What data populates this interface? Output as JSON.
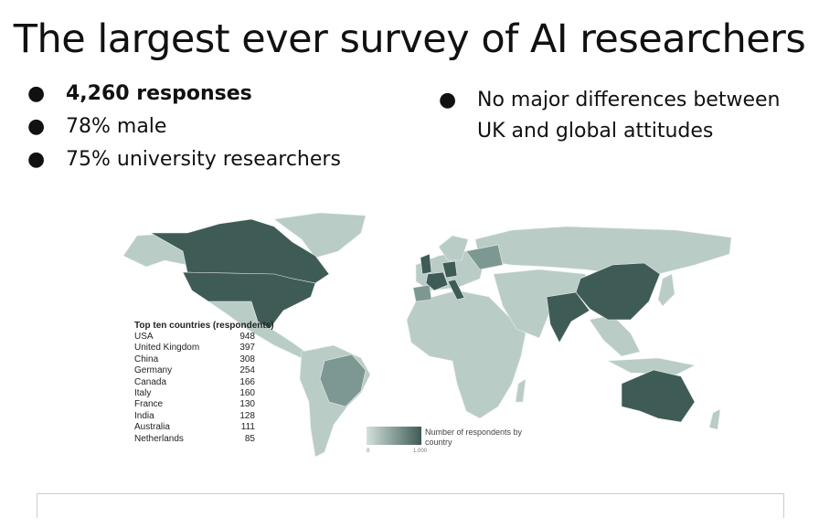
{
  "title": "The largest ever survey of AI researchers",
  "bullets_left": [
    {
      "text": "4,260 responses",
      "bold": true
    },
    {
      "text": "78% male",
      "bold": false
    },
    {
      "text": "75% university researchers",
      "bold": false
    }
  ],
  "bullets_right": [
    {
      "text": "No major differences between UK and global attitudes"
    }
  ],
  "bullet_glyph": "●",
  "map": {
    "colors": {
      "high": "#3f5b56",
      "mid": "#7d9892",
      "low": "#b9ccc6",
      "lowest": "#d3e0db"
    },
    "table": {
      "header": "Top ten countries (respondents)",
      "rows": [
        {
          "country": "USA",
          "value": "948"
        },
        {
          "country": "United Kingdom",
          "value": "397"
        },
        {
          "country": "China",
          "value": "308"
        },
        {
          "country": "Germany",
          "value": "254"
        },
        {
          "country": "Canada",
          "value": "166"
        },
        {
          "country": "Italy",
          "value": "160"
        },
        {
          "country": "France",
          "value": "130"
        },
        {
          "country": "India",
          "value": "128"
        },
        {
          "country": "Australia",
          "value": "111"
        },
        {
          "country": "Netherlands",
          "value": "85"
        }
      ]
    },
    "legend": {
      "label": "Number of respondents by country",
      "min": "0",
      "max": "1,000"
    }
  }
}
